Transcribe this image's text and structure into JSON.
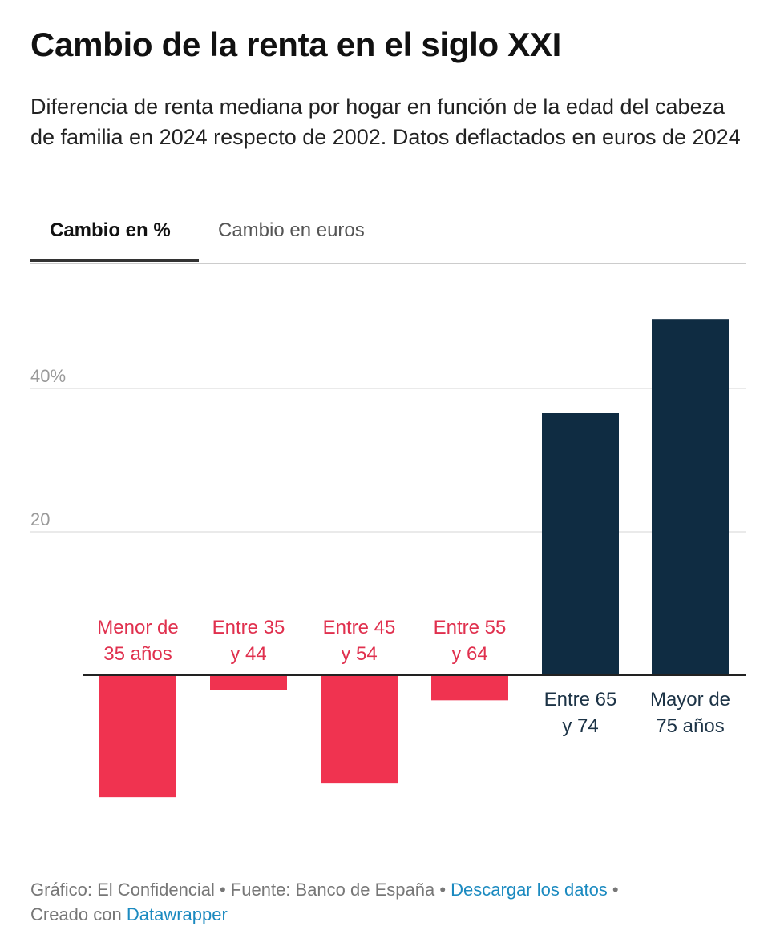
{
  "header": {
    "title": "Cambio de la renta en el siglo XXI",
    "subtitle": "Diferencia de renta mediana por hogar en función de la edad del cabeza de familia en 2024 respecto de 2002. Datos deflactados en euros de 2024"
  },
  "tabs": [
    {
      "label": "Cambio en %",
      "active": true
    },
    {
      "label": "Cambio en euros",
      "active": false
    }
  ],
  "chart_data": {
    "type": "bar",
    "categories": [
      "Menor de 35 años",
      "Entre 35 y 44",
      "Entre 45 y 54",
      "Entre 55 y 64",
      "Entre 65 y 74",
      "Mayor de 75 años"
    ],
    "category_lines": [
      [
        "Menor de",
        "35 años"
      ],
      [
        "Entre 35",
        "y 44"
      ],
      [
        "Entre 45",
        "y 54"
      ],
      [
        "Entre 55",
        "y 64"
      ],
      [
        "Entre 65",
        "y 74"
      ],
      [
        "Mayor de",
        "75 años"
      ]
    ],
    "values": [
      -17.0,
      -2.1,
      -15.1,
      -3.5,
      36.6,
      49.7
    ],
    "yticks": [
      {
        "value": 20,
        "label": "20"
      },
      {
        "value": 40,
        "label": "40%"
      }
    ],
    "ylim": [
      -20,
      52
    ],
    "grid": true,
    "colors": {
      "negative": "#f03350",
      "positive": "#0f2c42",
      "negative_label": "#e0304e",
      "positive_label": "#1c3346"
    }
  },
  "footer": {
    "prefix": "Gráfico: El Confidencial • Fuente: Banco de España • ",
    "download_link": "Descargar los datos",
    "sep": " •",
    "created": "Creado con ",
    "datawrapper_link": "Datawrapper"
  }
}
